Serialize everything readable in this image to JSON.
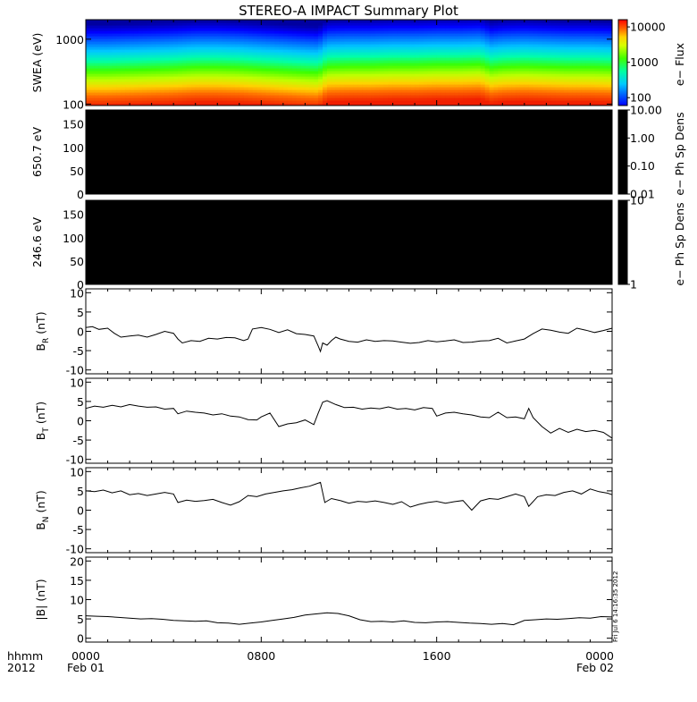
{
  "title": "STEREO-A IMPACT Summary Plot",
  "timestamp": "Fri Jul  6 14:16:35 2012",
  "time_axis": {
    "left_labels": [
      "hhmm",
      "2012"
    ],
    "ticks": [
      {
        "hours": 0,
        "label": "0000",
        "sublabel": "Feb 01"
      },
      {
        "hours": 8,
        "label": "0800",
        "sublabel": ""
      },
      {
        "hours": 16,
        "label": "1600",
        "sublabel": ""
      },
      {
        "hours": 24,
        "label": "0000",
        "sublabel": "Feb 02"
      }
    ]
  },
  "chart_data": [
    {
      "type": "heatmap",
      "ylabel": "SWEA (eV)",
      "yscale": "log",
      "ylim": [
        95,
        2000
      ],
      "yticks": [
        {
          "v": 100,
          "label": "100"
        },
        {
          "v": 1000,
          "label": "1000"
        }
      ],
      "colorbar": {
        "label": "e− Flux",
        "scale": "log",
        "range": [
          60,
          16000
        ],
        "ticks": [
          {
            "v": 100,
            "label": "100"
          },
          {
            "v": 1000,
            "label": "1000"
          },
          {
            "v": 10000,
            "label": "10000"
          }
        ]
      },
      "peak_energy_profile": {
        "x_hours": [
          0,
          1,
          2,
          3,
          4,
          5,
          6,
          7,
          8,
          9,
          10,
          10.6,
          11,
          12,
          13,
          14,
          15,
          16,
          17,
          18,
          18.5,
          19,
          20,
          21,
          22,
          23,
          24
        ],
        "shift_decades": [
          0,
          0,
          0.01,
          0.02,
          0.03,
          0.05,
          0.05,
          0.04,
          0.02,
          0,
          -0.02,
          -0.03,
          0.06,
          0.07,
          0.07,
          0.08,
          0.08,
          0.09,
          0.09,
          0.1,
          0.04,
          0.06,
          0.07,
          0.06,
          0.05,
          0.05,
          0.04
        ]
      }
    },
    {
      "type": "heatmap",
      "ylabel": "650.7 eV",
      "ylim": [
        0,
        180
      ],
      "yticks": [
        0,
        50,
        100,
        150
      ],
      "fill": "#000000",
      "colorbar": {
        "label": "e− Ph Sp Dens",
        "scale": "log",
        "range": [
          0.01,
          10
        ],
        "ticks": [
          {
            "v": 10,
            "label": "10.00"
          },
          {
            "v": 1,
            "label": "1.00"
          },
          {
            "v": 0.1,
            "label": "0.10"
          },
          {
            "v": 0.01,
            "label": "0.01"
          }
        ]
      }
    },
    {
      "type": "heatmap",
      "ylabel": "246.6 eV",
      "ylim": [
        0,
        180
      ],
      "yticks": [
        0,
        50,
        100,
        150
      ],
      "fill": "#000000",
      "colorbar": {
        "label": "e− Ph Sp Dens",
        "scale": "log",
        "range": [
          1,
          10
        ],
        "ticks": [
          {
            "v": 10,
            "label": "10"
          },
          {
            "v": 1,
            "label": "1"
          }
        ]
      }
    },
    {
      "type": "line",
      "ylabel": "B",
      "ylabel_sub": "R",
      "ylabel_unit": "(nT)",
      "ylim": [
        -11,
        11
      ],
      "yticks": [
        -10,
        -5,
        0,
        5,
        10
      ],
      "x_hours": [
        0,
        0.3,
        0.6,
        1.0,
        1.3,
        1.6,
        2.0,
        2.4,
        2.8,
        3.2,
        3.6,
        4.0,
        4.2,
        4.4,
        4.8,
        5.2,
        5.6,
        6.0,
        6.4,
        6.8,
        7.2,
        7.4,
        7.6,
        8.0,
        8.4,
        8.8,
        9.2,
        9.6,
        10.0,
        10.4,
        10.6,
        10.7,
        10.8,
        11.0,
        11.2,
        11.4,
        11.6,
        12.0,
        12.4,
        12.8,
        13.2,
        13.6,
        14.0,
        14.4,
        14.8,
        15.2,
        15.6,
        16.0,
        16.4,
        16.8,
        17.2,
        17.6,
        18.0,
        18.4,
        18.8,
        19.2,
        19.6,
        20.0,
        20.4,
        20.8,
        21.2,
        21.6,
        22.0,
        22.4,
        22.8,
        23.2,
        23.6,
        24.0
      ],
      "values": [
        1,
        1.2,
        0.5,
        0.8,
        -0.5,
        -1.5,
        -1.2,
        -1.0,
        -1.5,
        -0.8,
        0,
        -0.5,
        -2.0,
        -3.0,
        -2.4,
        -2.6,
        -1.8,
        -2.0,
        -1.6,
        -1.7,
        -2.4,
        -2.0,
        0.6,
        1.0,
        0.5,
        -0.3,
        0.4,
        -0.6,
        -0.8,
        -1.2,
        -3.8,
        -5.2,
        -3.0,
        -3.6,
        -2.4,
        -1.5,
        -2.0,
        -2.6,
        -2.8,
        -2.2,
        -2.6,
        -2.4,
        -2.5,
        -2.8,
        -3.1,
        -2.9,
        -2.4,
        -2.7,
        -2.5,
        -2.2,
        -2.9,
        -2.8,
        -2.5,
        -2.4,
        -1.8,
        -3.0,
        -2.5,
        -2.0,
        -0.6,
        0.6,
        0.3,
        -0.2,
        -0.5,
        0.8,
        0.3,
        -0.3,
        0.2,
        0.8
      ]
    },
    {
      "type": "line",
      "ylabel": "B",
      "ylabel_sub": "T",
      "ylabel_unit": "(nT)",
      "ylim": [
        -11,
        11
      ],
      "yticks": [
        -10,
        -5,
        0,
        5,
        10
      ],
      "x_hours": [
        0,
        0.4,
        0.8,
        1.2,
        1.6,
        2.0,
        2.4,
        2.8,
        3.2,
        3.6,
        4.0,
        4.2,
        4.6,
        5.0,
        5.4,
        5.8,
        6.2,
        6.6,
        7.0,
        7.4,
        7.8,
        8.0,
        8.4,
        8.8,
        9.2,
        9.6,
        10.0,
        10.4,
        10.6,
        10.8,
        11.0,
        11.4,
        11.8,
        12.2,
        12.6,
        13.0,
        13.4,
        13.8,
        14.2,
        14.6,
        15.0,
        15.4,
        15.8,
        16.0,
        16.4,
        16.8,
        17.2,
        17.6,
        18.0,
        18.4,
        18.8,
        19.2,
        19.6,
        20.0,
        20.2,
        20.4,
        20.8,
        21.2,
        21.6,
        22.0,
        22.4,
        22.8,
        23.2,
        23.6,
        24.0
      ],
      "values": [
        3.2,
        3.8,
        3.5,
        4.0,
        3.6,
        4.2,
        3.8,
        3.5,
        3.6,
        3.0,
        3.2,
        1.8,
        2.5,
        2.2,
        2.0,
        1.5,
        1.8,
        1.2,
        1.0,
        0.3,
        0.2,
        1.0,
        2.0,
        -1.5,
        -0.8,
        -0.5,
        0.2,
        -1.0,
        2.0,
        4.8,
        5.2,
        4.2,
        3.4,
        3.5,
        3.0,
        3.3,
        3.1,
        3.6,
        3.0,
        3.2,
        2.8,
        3.4,
        3.2,
        1.2,
        2.0,
        2.2,
        1.8,
        1.5,
        1.0,
        0.8,
        2.2,
        0.8,
        1.0,
        0.5,
        3.2,
        0.8,
        -1.5,
        -3.2,
        -2.0,
        -3.0,
        -2.2,
        -2.8,
        -2.5,
        -3.0,
        -4.5
      ]
    },
    {
      "type": "line",
      "ylabel": "B",
      "ylabel_sub": "N",
      "ylabel_unit": "(nT)",
      "ylim": [
        -11,
        11
      ],
      "yticks": [
        -10,
        -5,
        0,
        5,
        10
      ],
      "x_hours": [
        0,
        0.4,
        0.8,
        1.2,
        1.6,
        2.0,
        2.4,
        2.8,
        3.2,
        3.6,
        4.0,
        4.2,
        4.6,
        5.0,
        5.4,
        5.8,
        6.2,
        6.6,
        7.0,
        7.4,
        7.8,
        8.2,
        8.6,
        9.0,
        9.4,
        9.8,
        10.2,
        10.5,
        10.7,
        10.9,
        11.2,
        11.6,
        12.0,
        12.4,
        12.8,
        13.2,
        13.6,
        14.0,
        14.4,
        14.8,
        15.2,
        15.6,
        16.0,
        16.4,
        16.8,
        17.2,
        17.6,
        18.0,
        18.4,
        18.8,
        19.2,
        19.6,
        20.0,
        20.2,
        20.6,
        21.0,
        21.4,
        21.8,
        22.2,
        22.6,
        23.0,
        23.4,
        23.8,
        24.0
      ],
      "values": [
        5.0,
        4.8,
        5.2,
        4.5,
        5.0,
        4.0,
        4.3,
        3.8,
        4.2,
        4.6,
        4.2,
        2.0,
        2.6,
        2.3,
        2.5,
        2.8,
        2.0,
        1.3,
        2.2,
        3.8,
        3.5,
        4.2,
        4.6,
        5.0,
        5.3,
        5.8,
        6.2,
        6.8,
        7.2,
        2.0,
        3.0,
        2.5,
        1.8,
        2.3,
        2.1,
        2.4,
        2.0,
        1.5,
        2.2,
        0.8,
        1.5,
        2.0,
        2.3,
        1.8,
        2.2,
        2.5,
        0.0,
        2.4,
        3.0,
        2.8,
        3.5,
        4.2,
        3.5,
        1.0,
        3.5,
        4.0,
        3.8,
        4.6,
        5.0,
        4.2,
        5.5,
        4.8,
        4.4,
        4.0
      ]
    },
    {
      "type": "line",
      "ylabel": "|B| (nT)",
      "ylim": [
        -1,
        21
      ],
      "yticks": [
        0,
        5,
        10,
        15,
        20
      ],
      "x_hours": [
        0,
        0.5,
        1.0,
        1.5,
        2.0,
        2.5,
        3.0,
        3.5,
        4.0,
        4.5,
        5.0,
        5.5,
        6.0,
        6.5,
        7.0,
        7.5,
        8.0,
        8.5,
        9.0,
        9.5,
        10.0,
        10.5,
        11.0,
        11.5,
        12.0,
        12.5,
        13.0,
        13.5,
        14.0,
        14.5,
        15.0,
        15.5,
        16.0,
        16.5,
        17.0,
        17.5,
        18.0,
        18.5,
        19.0,
        19.5,
        20.0,
        20.5,
        21.0,
        21.5,
        22.0,
        22.5,
        23.0,
        23.5,
        24.0
      ],
      "values": [
        5.8,
        5.7,
        5.6,
        5.4,
        5.2,
        5.0,
        5.1,
        4.9,
        4.6,
        4.5,
        4.4,
        4.5,
        4.0,
        3.9,
        3.6,
        3.9,
        4.2,
        4.6,
        5.0,
        5.4,
        6.0,
        6.3,
        6.6,
        6.4,
        5.8,
        4.8,
        4.3,
        4.4,
        4.2,
        4.5,
        4.1,
        4.0,
        4.2,
        4.3,
        4.1,
        3.9,
        3.8,
        3.6,
        3.8,
        3.5,
        4.6,
        4.8,
        5.0,
        4.9,
        5.1,
        5.3,
        5.2,
        5.6,
        5.5
      ]
    }
  ]
}
